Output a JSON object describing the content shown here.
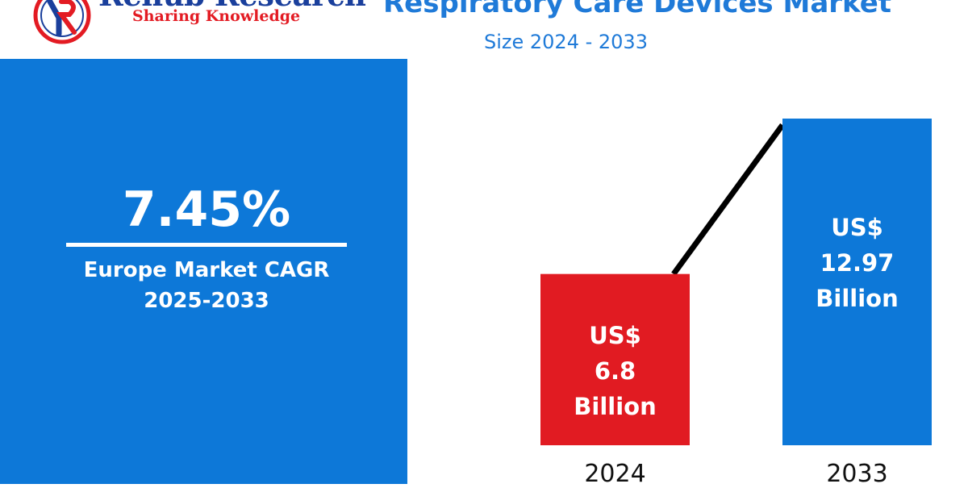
{
  "brand": {
    "name": "Renub Research",
    "tagline": "Sharing Knowledge",
    "colors": {
      "name": "#1a3f9c",
      "tagline": "#e31b23"
    }
  },
  "header": {
    "title": "Respiratory Care Devices Market",
    "subtitle": "Size 2024 - 2033"
  },
  "cagr": {
    "value": "7.45%",
    "label_line1": "Europe Market CAGR",
    "label_line2": "2025-2033",
    "panel_color": "#0d78d8"
  },
  "chart_data": {
    "type": "bar",
    "title": "Respiratory Care Devices Market",
    "subtitle": "Size 2024 - 2033",
    "categories": [
      "2024",
      "2033"
    ],
    "values": [
      6.8,
      12.97
    ],
    "unit": "US$ Billion",
    "ylim": [
      0,
      12.97
    ],
    "grid": false,
    "trend_line": true,
    "bars": [
      {
        "year": "2024",
        "value": 6.8,
        "color": "#e11b22",
        "label_line1": "US$",
        "label_line2": "6.8",
        "label_line3": "Billion"
      },
      {
        "year": "2033",
        "value": 12.97,
        "color": "#0d78d8",
        "label_line1": "US$",
        "label_line2": "12.97",
        "label_line3": "Billion"
      }
    ]
  }
}
